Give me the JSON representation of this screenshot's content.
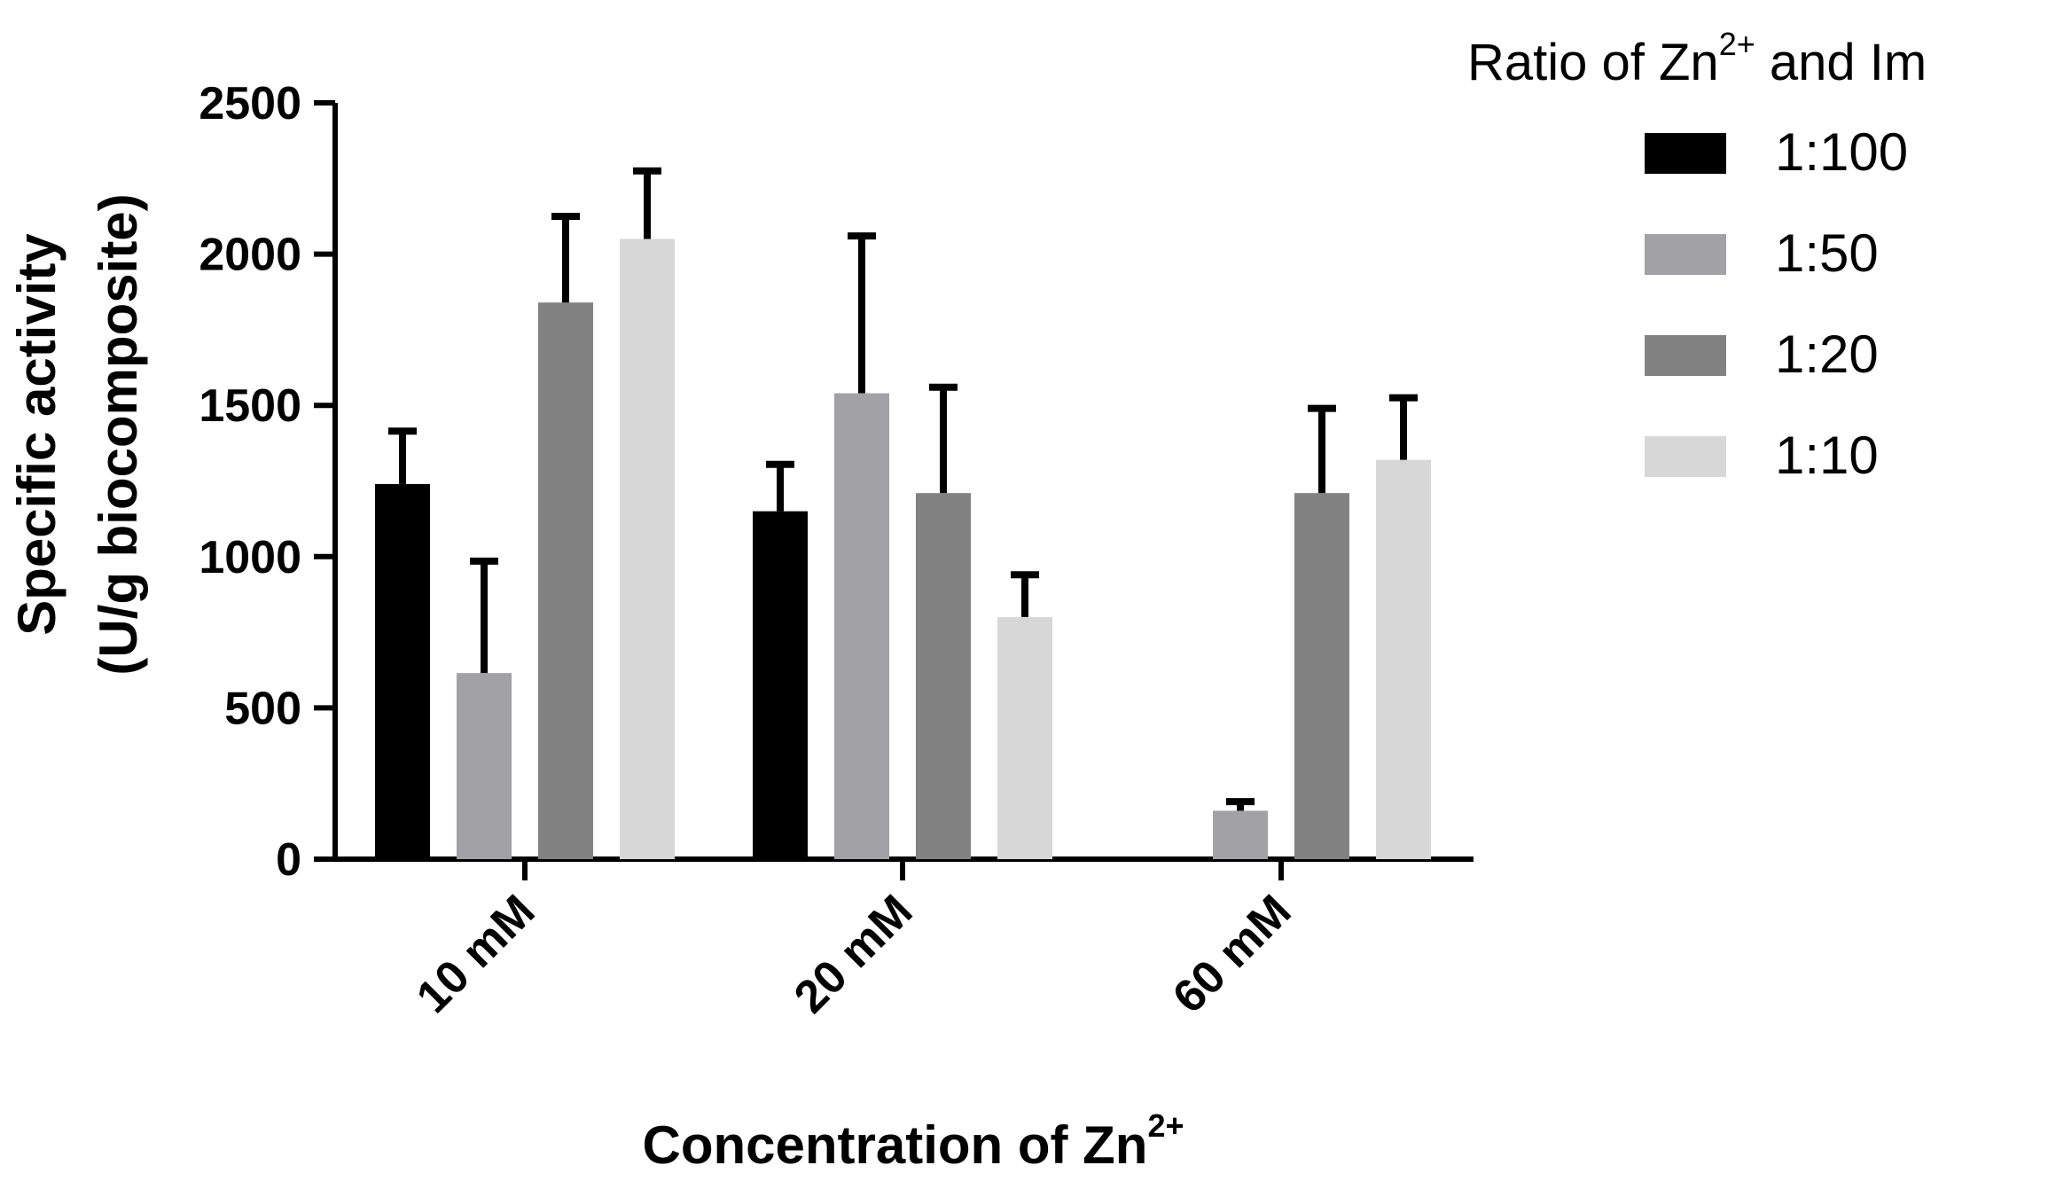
{
  "chart_data": {
    "type": "bar",
    "categories": [
      "10 mM",
      "20 mM",
      "60 mM"
    ],
    "series": [
      {
        "name": "1:100",
        "color": "#000000",
        "values": [
          1240,
          1150,
          0
        ],
        "errors": [
          175,
          155,
          0
        ]
      },
      {
        "name": "1:50",
        "color": "#a1a1a6",
        "values": [
          615,
          1540,
          160
        ],
        "errors": [
          370,
          520,
          30
        ]
      },
      {
        "name": "1:20",
        "color": "#828282",
        "values": [
          1840,
          1210,
          1210
        ],
        "errors": [
          285,
          350,
          280
        ]
      },
      {
        "name": "1:10",
        "color": "#d7d7d7",
        "values": [
          2050,
          800,
          1320
        ],
        "errors": [
          225,
          140,
          205
        ]
      }
    ],
    "ylabel_line1": "Specific activity",
    "ylabel_line2": "(U/g biocomposite)",
    "xlabel_main": "Concentration of Zn",
    "xlabel_sup": "2+",
    "legend_title_main": "Ratio of Zn",
    "legend_title_sup": "2+",
    "legend_title_rest": " and Im",
    "ylim": [
      0,
      2500
    ],
    "yticks": [
      "0",
      "500",
      "1000",
      "1500",
      "2000",
      "2500"
    ],
    "legend_position": "right",
    "grid": false
  }
}
